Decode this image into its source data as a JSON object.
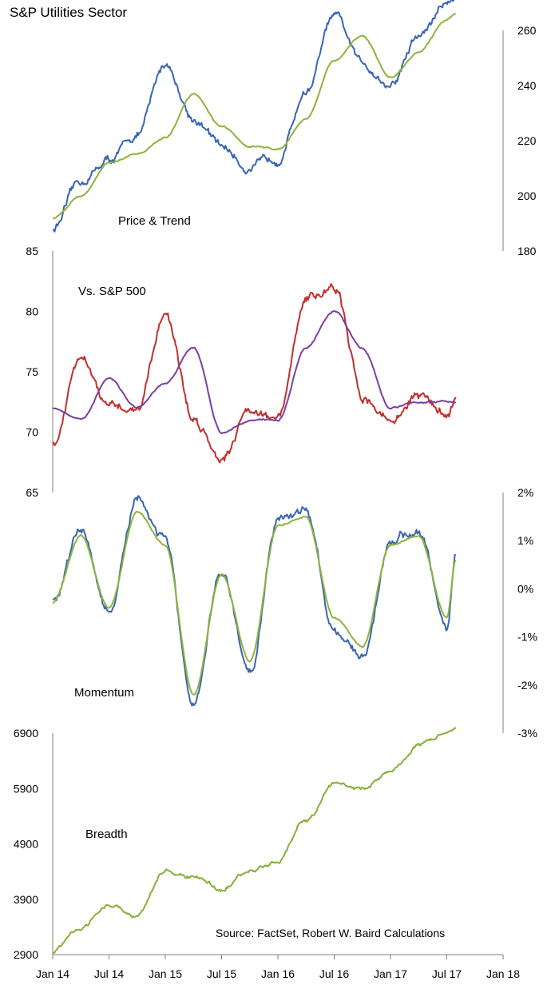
{
  "title": "S&P Utilities Sector",
  "source": "Source: FactSet, Robert W. Baird Calculations",
  "x_tick_labels": [
    "Jan 14",
    "Jul 14",
    "Jan 15",
    "Jul 15",
    "Jan 16",
    "Jul 16",
    "Jan 17",
    "Jul 17",
    "Jan 18"
  ],
  "colors": {
    "blue": "#3a65b0",
    "green": "#8cb43c",
    "red": "#c0302c",
    "purple": "#7a3fa0",
    "breadth": "#86b03a"
  },
  "chart_data": [
    {
      "type": "line",
      "panel_label": "Price & Trend",
      "y_axis_side": "right",
      "ylim": [
        180,
        275
      ],
      "y_ticks": [
        180,
        200,
        220,
        240,
        260
      ],
      "x": [
        2014.0,
        2014.25,
        2014.5,
        2014.75,
        2015.0,
        2015.25,
        2015.5,
        2015.75,
        2016.0,
        2016.25,
        2016.5,
        2016.75,
        2017.0,
        2017.25,
        2017.5,
        2017.58
      ],
      "series": [
        {
          "values": [
            188,
            205,
            213,
            222,
            248,
            228,
            218,
            210,
            214,
            238,
            265,
            248,
            240,
            258,
            270,
            272
          ]
        },
        {
          "values": [
            192,
            200,
            212,
            215,
            221,
            237,
            225,
            218,
            217,
            228,
            249,
            258,
            243,
            252,
            264,
            266
          ]
        }
      ]
    },
    {
      "type": "line",
      "panel_label": "Vs. S&P 500",
      "y_axis_side": "left",
      "ylim": [
        65,
        85
      ],
      "y_ticks": [
        65,
        70,
        75,
        80,
        85
      ],
      "x": [
        2014.0,
        2014.25,
        2014.5,
        2014.75,
        2015.0,
        2015.25,
        2015.5,
        2015.75,
        2016.0,
        2016.25,
        2016.5,
        2016.75,
        2017.0,
        2017.25,
        2017.5,
        2017.58
      ],
      "series": [
        {
          "values": [
            69,
            76,
            72,
            72,
            80,
            71,
            68,
            72,
            71,
            81,
            82,
            73,
            71,
            73,
            71.5,
            73
          ]
        },
        {
          "values": [
            72,
            71,
            74.5,
            72,
            74,
            77,
            70,
            71,
            71,
            77,
            80,
            77,
            72,
            72.5,
            72.5,
            72.5
          ]
        }
      ]
    },
    {
      "type": "line",
      "panel_label": "Momentum",
      "y_axis_side": "right",
      "ylim": [
        -3,
        2
      ],
      "y_ticks": [
        -3,
        -2,
        -1,
        0,
        1,
        2
      ],
      "y_tick_labels": [
        "-3%",
        "-2%",
        "-1%",
        "0%",
        "1%",
        "2%"
      ],
      "x": [
        2014.0,
        2014.25,
        2014.5,
        2014.75,
        2015.0,
        2015.25,
        2015.5,
        2015.75,
        2016.0,
        2016.25,
        2016.5,
        2016.75,
        2017.0,
        2017.25,
        2017.5,
        2017.58
      ],
      "series": [
        {
          "values": [
            -0.3,
            1.2,
            -0.5,
            1.8,
            1.0,
            -2.5,
            0.4,
            -1.8,
            1.5,
            1.6,
            -0.8,
            -1.5,
            1.0,
            1.2,
            -0.8,
            0.8
          ]
        },
        {
          "values": [
            -0.3,
            1.1,
            -0.4,
            1.6,
            0.9,
            -2.2,
            0.3,
            -1.5,
            1.3,
            1.5,
            -0.6,
            -1.2,
            0.9,
            1.1,
            -0.6,
            0.6
          ]
        }
      ]
    },
    {
      "type": "line",
      "panel_label": "Breadth",
      "y_axis_side": "left",
      "ylim": [
        2900,
        7300
      ],
      "y_ticks": [
        2900,
        3900,
        4900,
        5900,
        6900
      ],
      "x": [
        2014.0,
        2014.25,
        2014.5,
        2014.75,
        2015.0,
        2015.25,
        2015.5,
        2015.75,
        2016.0,
        2016.25,
        2016.5,
        2016.75,
        2017.0,
        2017.25,
        2017.5,
        2017.58
      ],
      "series": [
        {
          "values": [
            2950,
            3400,
            3800,
            3600,
            4400,
            4300,
            4100,
            4400,
            4600,
            5300,
            6000,
            5900,
            6200,
            6700,
            6900,
            7000
          ]
        }
      ]
    }
  ]
}
